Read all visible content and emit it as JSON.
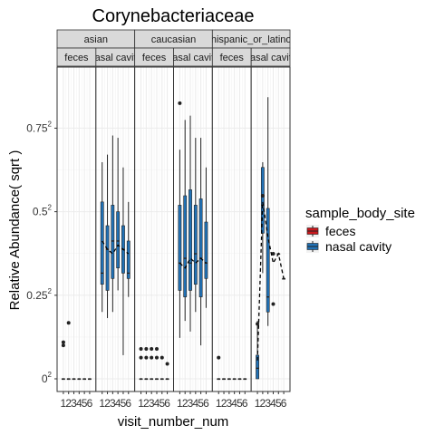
{
  "chart_data": {
    "type": "box",
    "title": "Corynebacteriaceae",
    "xlabel": "visit_number_num",
    "ylabel": "Relative Abundance( sqrt )",
    "y_scale": "sqrt",
    "y_ticks": [
      {
        "value": 0,
        "base": "0",
        "exp": "2"
      },
      {
        "value": 0.0625,
        "base": "0.25",
        "exp": "2"
      },
      {
        "value": 0.25,
        "base": "0.5",
        "exp": "2"
      },
      {
        "value": 0.5625,
        "base": "0.75",
        "exp": "2"
      }
    ],
    "ylim": [
      0,
      0.85
    ],
    "x_ticks": [
      "1",
      "2",
      "3",
      "4",
      "5",
      "6"
    ],
    "legend": {
      "title": "sample_body_site",
      "entries": [
        {
          "label": "feces",
          "color": "#CB181D"
        },
        {
          "label": "nasal cavity",
          "color": "#2171B5"
        }
      ]
    },
    "panels": [
      {
        "ethnicity": "asian",
        "site": "feces",
        "site_label": "feces",
        "boxes": [
          {
            "x": 1,
            "min": 0,
            "q1": 0,
            "med": 0,
            "q3": 0,
            "max": 0,
            "out": [
              0.01,
              0.012
            ]
          },
          {
            "x": 2,
            "min": 0,
            "q1": 0,
            "med": 0,
            "q3": 0,
            "max": 0,
            "out": [
              0.028
            ]
          },
          {
            "x": 3,
            "min": 0,
            "q1": 0,
            "med": 0,
            "q3": 0,
            "max": 0,
            "out": []
          },
          {
            "x": 4,
            "min": 0,
            "q1": 0,
            "med": 0,
            "q3": 0,
            "max": 0,
            "out": []
          },
          {
            "x": 5,
            "min": 0,
            "q1": 0,
            "med": 0,
            "q3": 0,
            "max": 0,
            "out": []
          },
          {
            "x": 6,
            "min": 0,
            "q1": 0,
            "med": 0,
            "q3": 0,
            "max": 0,
            "out": []
          }
        ],
        "mean_line": []
      },
      {
        "ethnicity": "asian",
        "site": "nasal cavity",
        "site_label": "nasal cavity",
        "boxes": [
          {
            "x": 1,
            "min": 0.04,
            "q1": 0.08,
            "med": 0.1,
            "q3": 0.28,
            "max": 0.42,
            "out": []
          },
          {
            "x": 2,
            "min": 0.033,
            "q1": 0.07,
            "med": 0.15,
            "q3": 0.21,
            "max": 0.45,
            "out": []
          },
          {
            "x": 3,
            "min": 0.04,
            "q1": 0.09,
            "med": 0.17,
            "q3": 0.27,
            "max": 0.53,
            "out": []
          },
          {
            "x": 4,
            "min": 0.07,
            "q1": 0.11,
            "med": 0.17,
            "q3": 0.25,
            "max": 0.52,
            "out": []
          },
          {
            "x": 5,
            "min": 0.005,
            "q1": 0.1,
            "med": 0.15,
            "q3": 0.21,
            "max": 0.4,
            "out": []
          },
          {
            "x": 6,
            "min": 0.06,
            "q1": 0.09,
            "med": 0.1,
            "q3": 0.17,
            "max": 0.28,
            "out": []
          }
        ],
        "mean_line": [
          0.17,
          0.15,
          0.14,
          0.16,
          0.15,
          0.14
        ]
      },
      {
        "ethnicity": "caucasian",
        "site": "feces",
        "site_label": "feces",
        "boxes": [
          {
            "x": 1,
            "min": 0,
            "q1": 0,
            "med": 0,
            "q3": 0,
            "max": 0,
            "out": [
              0.004,
              0.008
            ]
          },
          {
            "x": 2,
            "min": 0,
            "q1": 0,
            "med": 0,
            "q3": 0,
            "max": 0,
            "out": [
              0.004,
              0.008
            ]
          },
          {
            "x": 3,
            "min": 0,
            "q1": 0,
            "med": 0,
            "q3": 0,
            "max": 0,
            "out": [
              0.004,
              0.008
            ]
          },
          {
            "x": 4,
            "min": 0,
            "q1": 0,
            "med": 0,
            "q3": 0,
            "max": 0,
            "out": [
              0.004,
              0.008
            ]
          },
          {
            "x": 5,
            "min": 0,
            "q1": 0,
            "med": 0,
            "q3": 0,
            "max": 0,
            "out": [
              0.004
            ]
          },
          {
            "x": 6,
            "min": 0,
            "q1": 0,
            "med": 0,
            "q3": 0,
            "max": 0,
            "out": [
              0.002
            ]
          }
        ],
        "mean_line": []
      },
      {
        "ethnicity": "caucasian",
        "site": "nasal cavity",
        "site_label": "nasal cavity",
        "boxes": [
          {
            "x": 1,
            "min": 0.015,
            "q1": 0.07,
            "med": 0.12,
            "q3": 0.27,
            "max": 0.47,
            "out": [
              0.68
            ]
          },
          {
            "x": 2,
            "min": 0.03,
            "q1": 0.06,
            "med": 0.13,
            "q3": 0.3,
            "max": 0.6,
            "out": []
          },
          {
            "x": 3,
            "min": 0.02,
            "q1": 0.07,
            "med": 0.12,
            "q3": 0.32,
            "max": 0.62,
            "out": []
          },
          {
            "x": 4,
            "min": 0.04,
            "q1": 0.08,
            "med": 0.14,
            "q3": 0.27,
            "max": 0.52,
            "out": []
          },
          {
            "x": 5,
            "min": 0.01,
            "q1": 0.06,
            "med": 0.13,
            "q3": 0.29,
            "max": 0.52,
            "out": []
          },
          {
            "x": 6,
            "min": 0.045,
            "q1": 0.09,
            "med": 0.12,
            "q3": 0.22,
            "max": 0.4,
            "out": []
          }
        ],
        "mean_line": [
          0.12,
          0.11,
          0.13,
          0.12,
          0.13,
          0.12
        ]
      },
      {
        "ethnicity": "hispanic_or_latino",
        "site": "feces",
        "site_label": "feces",
        "boxes": [
          {
            "x": 1,
            "min": 0,
            "q1": 0,
            "med": 0,
            "q3": 0,
            "max": 0,
            "out": [
              0.004
            ]
          },
          {
            "x": 2,
            "min": 0,
            "q1": 0,
            "med": 0,
            "q3": 0,
            "max": 0,
            "out": []
          },
          {
            "x": 3,
            "min": 0,
            "q1": 0,
            "med": 0,
            "q3": 0,
            "max": 0,
            "out": []
          },
          {
            "x": 4,
            "min": 0,
            "q1": 0,
            "med": 0,
            "q3": 0,
            "max": 0,
            "out": []
          },
          {
            "x": 5,
            "min": 0,
            "q1": 0,
            "med": 0,
            "q3": 0,
            "max": 0,
            "out": []
          },
          {
            "x": 6,
            "min": 0,
            "q1": 0,
            "med": 0,
            "q3": 0,
            "max": 0,
            "out": []
          }
        ],
        "mean_line": []
      },
      {
        "ethnicity": "hispanic_or_latino",
        "site": "nasal cavity",
        "site_label": "nasal cavity",
        "boxes": [
          {
            "x": 1,
            "min": 0,
            "q1": 0,
            "med": 0.001,
            "q3": 0.005,
            "max": 0.03,
            "out": [
              0.027
            ]
          },
          {
            "x": 2,
            "min": 0.1,
            "q1": 0.19,
            "med": 0.27,
            "q3": 0.4,
            "max": 0.42,
            "out": [
              0.3
            ]
          },
          {
            "x": 3,
            "min": 0.025,
            "q1": 0.04,
            "med": 0.06,
            "q3": 0.26,
            "max": 0.71,
            "out": []
          },
          {
            "x": 4,
            "min": 0.14,
            "q1": 0.14,
            "med": 0.14,
            "q3": 0.14,
            "max": 0.14,
            "out": [
              0.14,
              0.05
            ]
          },
          {
            "x": 5,
            "min": 0.14,
            "q1": 0.14,
            "med": 0.14,
            "q3": 0.14,
            "max": 0.14,
            "out": []
          },
          {
            "x": 6,
            "min": 0.09,
            "q1": 0.09,
            "med": 0.09,
            "q3": 0.09,
            "max": 0.09,
            "out": []
          }
        ],
        "mean_line": [
          0.003,
          0.28,
          0.18,
          0.12,
          0.14,
          0.09
        ]
      }
    ]
  }
}
